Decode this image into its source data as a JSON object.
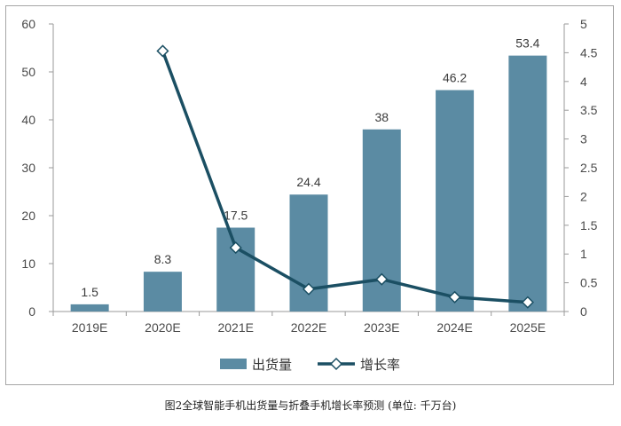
{
  "caption": "图2全球智能手机出货量与折叠手机增长率预测 (单位: 千万台)",
  "colors": {
    "bar": "#5b8ba3",
    "line": "#1b4f63",
    "marker_fill": "#ffffff",
    "axis": "#9a9a9a"
  },
  "chart_data": {
    "type": "bar",
    "categories": [
      "2019E",
      "2020E",
      "2021E",
      "2022E",
      "2023E",
      "2024E",
      "2025E"
    ],
    "series": [
      {
        "name": "出货量",
        "type": "bar",
        "axis": "left",
        "values": [
          1.5,
          8.3,
          17.5,
          24.4,
          38,
          46.2,
          53.4
        ],
        "labels": [
          "1.5",
          "8.3",
          "17.5",
          "24.4",
          "38",
          "46.2",
          "53.4"
        ]
      },
      {
        "name": "增长率",
        "type": "line",
        "axis": "right",
        "values": [
          null,
          4.53,
          1.11,
          0.39,
          0.56,
          0.25,
          0.16
        ]
      }
    ],
    "y_left": {
      "ylim": [
        0,
        60
      ],
      "ticks": [
        "0",
        "10",
        "20",
        "30",
        "40",
        "50",
        "60"
      ]
    },
    "y_right": {
      "ylim": [
        0,
        5
      ],
      "ticks": [
        "0",
        "0.5",
        "1",
        "1.5",
        "2",
        "2.5",
        "3",
        "3.5",
        "4",
        "4.5",
        "5"
      ]
    },
    "legend": {
      "position": "bottom",
      "entries": [
        "出货量",
        "增长率"
      ]
    },
    "grid": false
  }
}
